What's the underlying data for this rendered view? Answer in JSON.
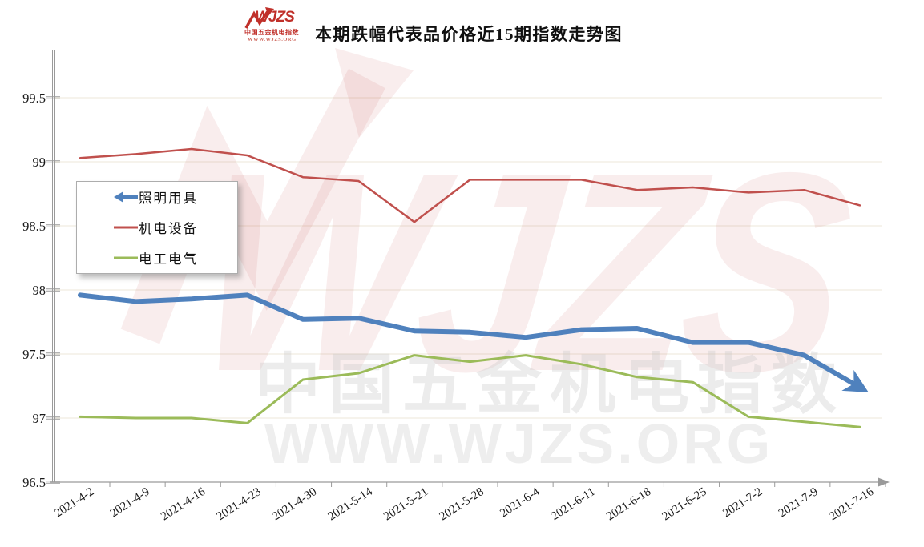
{
  "header": {
    "logo": {
      "brand": "WJZS",
      "tagline": "中国五金机电指数",
      "url": "WWW.WJZS.ORG"
    },
    "title": "本期跌幅代表品价格近15期指数走势图"
  },
  "chart_data": {
    "type": "line",
    "title": "本期跌幅代表品价格近15期指数走势图",
    "categories": [
      "2021-4-2",
      "2021-4-9",
      "2021-4-16",
      "2021-4-23",
      "2021-4-30",
      "2021-5-14",
      "2021-5-21",
      "2021-5-28",
      "2021-6-4",
      "2021-6-11",
      "2021-6-18",
      "2021-6-25",
      "2021-7-2",
      "2021-7-9",
      "2021-7-16"
    ],
    "series": [
      {
        "name": "照明用具",
        "color": "#4F81BD",
        "line_width": 6,
        "end_arrow": true,
        "values": [
          97.96,
          97.91,
          97.93,
          97.96,
          97.77,
          97.78,
          97.68,
          97.67,
          97.63,
          97.69,
          97.7,
          97.59,
          97.59,
          97.49,
          97.24
        ]
      },
      {
        "name": "机电设备",
        "color": "#C0504D",
        "line_width": 2.5,
        "end_arrow": false,
        "values": [
          99.03,
          99.06,
          99.1,
          99.05,
          98.88,
          98.85,
          98.53,
          98.86,
          98.86,
          98.86,
          98.78,
          98.8,
          98.76,
          98.78,
          98.66
        ]
      },
      {
        "name": "电工电气",
        "color": "#9BBB59",
        "line_width": 3,
        "end_arrow": false,
        "values": [
          97.01,
          97.0,
          97.0,
          96.96,
          97.3,
          97.35,
          97.49,
          97.44,
          97.49,
          97.42,
          97.32,
          97.28,
          97.01,
          96.97,
          96.93
        ]
      }
    ],
    "ylim": [
      96.5,
      99.5
    ],
    "ytick_step": 0.5,
    "ytick_labels": [
      "96.5",
      "97",
      "97.5",
      "98",
      "98.5",
      "99",
      "99.5"
    ],
    "xlabel": "",
    "ylabel": "",
    "grid": true,
    "legend_position": "upper-left"
  },
  "watermark": {
    "brand": "WJZS",
    "cn_text": "中国五金机电指数",
    "url_text": "WWW.WJZS.ORG"
  },
  "colors": {
    "axis": "#9a9a9a",
    "grid": "#ece7d9",
    "title": "#101010",
    "tick_label": "#1a1a1a",
    "logo_red": "#C0302A",
    "watermark_red": "rgba(192,80,77,0.10)",
    "watermark_gray": "#c9c9c9"
  }
}
